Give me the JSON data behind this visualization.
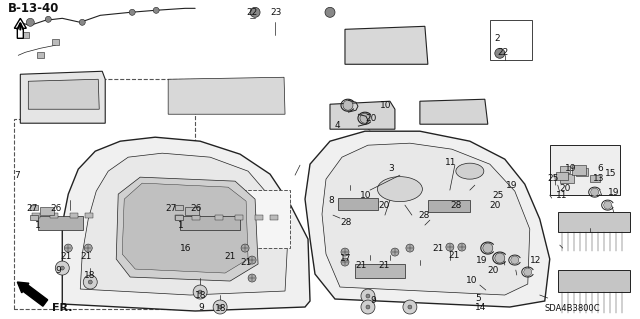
{
  "bg_color": "#ffffff",
  "fg_color": "#111111",
  "title": "B-13-40",
  "part_number": "SDA4B3800C",
  "lc": "#222222",
  "lw_main": 1.0,
  "lw_thin": 0.5,
  "lw_dash": 0.5,
  "gray_fill": "#e0e0e0",
  "dark_fill": "#888888",
  "mid_fill": "#bbbbbb"
}
